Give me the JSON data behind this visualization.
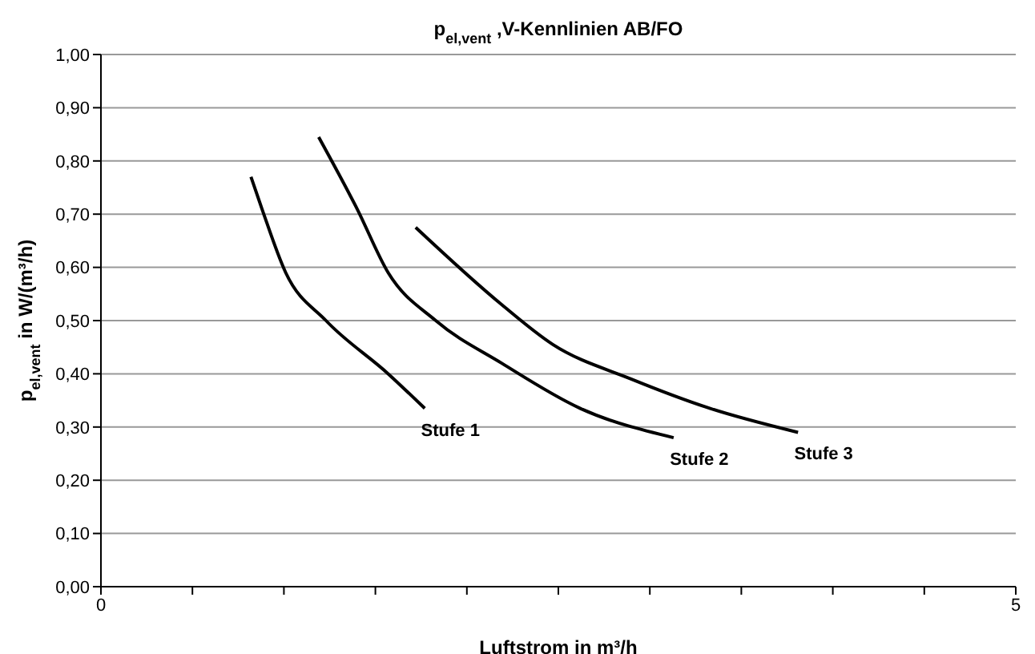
{
  "chart_data": {
    "type": "line",
    "title": "p$_{el,vent}$ ,V-Kennlinien AB/FO",
    "xlabel": "Luftstrom in m³/h",
    "ylabel": "p$_{el,vent}$ in W/(m³/h)",
    "xlim": [
      0,
      5
    ],
    "xticks": [
      0,
      {
        "value": 0.5,
        "label": null
      },
      {
        "value": 1,
        "label": null
      },
      {
        "value": 1.5,
        "label": null
      },
      {
        "value": 2,
        "label": null
      },
      {
        "value": 2.5,
        "label": null
      },
      {
        "value": 3,
        "label": null
      },
      {
        "value": 3.5,
        "label": null
      },
      {
        "value": 4,
        "label": null
      },
      {
        "value": 4.5,
        "label": null
      },
      5
    ],
    "ylim": [
      0,
      1
    ],
    "yticks": [
      {
        "value": 0,
        "label": "0,00"
      },
      {
        "value": 0.1,
        "label": "0,10"
      },
      {
        "value": 0.2,
        "label": "0,20"
      },
      {
        "value": 0.3,
        "label": "0,30"
      },
      {
        "value": 0.4,
        "label": "0,40"
      },
      {
        "value": 0.5,
        "label": "0,50"
      },
      {
        "value": 0.6,
        "label": "0,60"
      },
      {
        "value": 0.7,
        "label": "0,70"
      },
      {
        "value": 0.8,
        "label": "0,80"
      },
      {
        "value": 0.9,
        "label": "0,90"
      },
      {
        "value": 1,
        "label": "1,00"
      }
    ],
    "grid": "y",
    "legend": false,
    "marker": "none",
    "line_style": "solid",
    "series": [
      {
        "name": "Stufe 1",
        "color": "#000000",
        "x": [
          0.82,
          0.88,
          1.01,
          1.23,
          1.57,
          1.77
        ],
        "values": [
          0.77,
          0.71,
          0.59,
          0.5,
          0.4,
          0.335
        ]
      },
      {
        "name": "Stufe 2",
        "color": "#000000",
        "x": [
          1.19,
          1.4,
          1.57,
          1.83,
          2.19,
          2.62,
          3.13
        ],
        "values": [
          0.845,
          0.71,
          0.59,
          0.5,
          0.42,
          0.335,
          0.28
        ]
      },
      {
        "name": "Stufe 3",
        "color": "#000000",
        "x": [
          1.72,
          2.19,
          2.47,
          2.9,
          3.33,
          3.81
        ],
        "values": [
          0.675,
          0.53,
          0.455,
          0.39,
          0.335,
          0.29
        ]
      }
    ]
  }
}
